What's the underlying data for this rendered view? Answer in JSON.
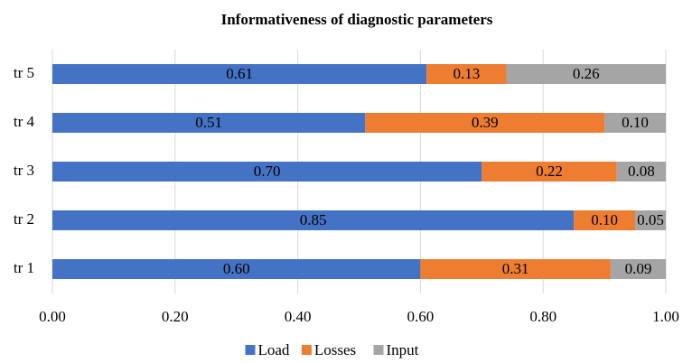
{
  "chart_data": {
    "type": "stacked_barh",
    "title": "Informativeness of diagnostic parameters",
    "categories": [
      "tr 1",
      "tr 2",
      "tr 3",
      "tr 4",
      "tr 5"
    ],
    "series": [
      {
        "name": "Load",
        "color": "#4472c4",
        "values": [
          0.6,
          0.85,
          0.7,
          0.51,
          0.61
        ],
        "value_labels": [
          "0.60",
          "0.85",
          "0.70",
          "0.51",
          "0.61"
        ]
      },
      {
        "name": "Losses",
        "color": "#ed7d31",
        "values": [
          0.31,
          0.1,
          0.22,
          0.39,
          0.13
        ],
        "value_labels": [
          "0.31",
          "0.10",
          "0.22",
          "0.39",
          "0.13"
        ]
      },
      {
        "name": "Input",
        "color": "#a5a5a5",
        "values": [
          0.09,
          0.05,
          0.08,
          0.1,
          0.26
        ],
        "value_labels": [
          "0.09",
          "0.05",
          "0.08",
          "0.10",
          "0.26"
        ]
      }
    ],
    "xlim": [
      0,
      1
    ],
    "xticks": [
      {
        "value": 0,
        "label": "0.00"
      },
      {
        "value": 0.2,
        "label": "0.20"
      },
      {
        "value": 0.4,
        "label": "0.40"
      },
      {
        "value": 0.6,
        "label": "0.60"
      },
      {
        "value": 0.8,
        "label": "0.80"
      },
      {
        "value": 1,
        "label": "1.00"
      }
    ],
    "grid": true,
    "legend": "bottom"
  }
}
